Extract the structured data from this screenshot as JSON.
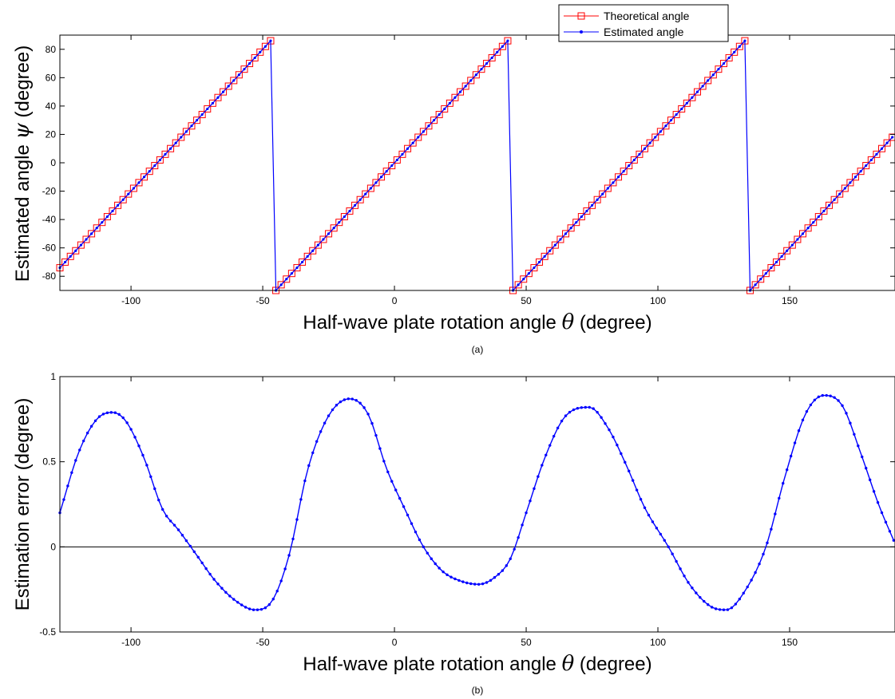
{
  "chart_data": [
    {
      "type": "line",
      "panel_caption": "(a)",
      "xlabel": "Half-wave plate rotation angle θ (degree)",
      "xlabel_text": "Half-wave plate rotation angle",
      "xlabel_symbol": "θ",
      "xlabel_unit": "(degree)",
      "ylabel": "Estimated angle ψ (degree)",
      "ylabel_text": "Estimated angle",
      "ylabel_symbol": "ψ",
      "ylabel_unit": "(degree)",
      "xlim": [
        -127,
        190
      ],
      "ylim": [
        -90,
        90
      ],
      "xticks": [
        -100,
        -50,
        0,
        50,
        100,
        150
      ],
      "yticks": [
        -80,
        -60,
        -40,
        -20,
        0,
        20,
        40,
        60,
        80
      ],
      "grid": false,
      "legend_position": "top-right",
      "x_range": [
        -127,
        190
      ],
      "x_step": 2,
      "relation": "y = 2x wrapped into [-90, 90)",
      "series": [
        {
          "name": "Theoretical angle",
          "color": "#ff0000",
          "marker": "square-open"
        },
        {
          "name": "Estimated angle",
          "color": "#0000ff",
          "marker": "dot"
        }
      ]
    },
    {
      "type": "line",
      "panel_caption": "(b)",
      "xlabel": "Half-wave plate rotation angle θ (degree)",
      "xlabel_text": "Half-wave plate rotation angle",
      "xlabel_symbol": "θ",
      "xlabel_unit": "(degree)",
      "ylabel": "Estimation error (degree)",
      "xlim": [
        -127,
        190
      ],
      "ylim": [
        -0.5,
        1
      ],
      "xticks": [
        -100,
        -50,
        0,
        50,
        100,
        150
      ],
      "yticks": [
        -0.5,
        0,
        0.5,
        1
      ],
      "ytick_labels": [
        "-0.5",
        "0",
        "0.5",
        "1"
      ],
      "grid": false,
      "zero_line": true,
      "x_step": 1.5,
      "series": [
        {
          "color": "#0000ff",
          "marker": "dot",
          "points": [
            [
              -127,
              0.2
            ],
            [
              -120,
              0.55
            ],
            [
              -113,
              0.75
            ],
            [
              -107,
              0.79
            ],
            [
              -102,
              0.74
            ],
            [
              -95,
              0.52
            ],
            [
              -88,
              0.22
            ],
            [
              -82,
              0.1
            ],
            [
              -75,
              -0.05
            ],
            [
              -68,
              -0.2
            ],
            [
              -60,
              -0.32
            ],
            [
              -53,
              -0.37
            ],
            [
              -47,
              -0.33
            ],
            [
              -40,
              -0.05
            ],
            [
              -33,
              0.45
            ],
            [
              -25,
              0.77
            ],
            [
              -17,
              0.87
            ],
            [
              -10,
              0.78
            ],
            [
              -3,
              0.46
            ],
            [
              4,
              0.22
            ],
            [
              11,
              0.0
            ],
            [
              18,
              -0.14
            ],
            [
              25,
              -0.2
            ],
            [
              32,
              -0.22
            ],
            [
              38,
              -0.18
            ],
            [
              44,
              -0.07
            ],
            [
              50,
              0.2
            ],
            [
              57,
              0.52
            ],
            [
              65,
              0.77
            ],
            [
              74,
              0.82
            ],
            [
              81,
              0.7
            ],
            [
              88,
              0.48
            ],
            [
              95,
              0.23
            ],
            [
              104,
              0.0
            ],
            [
              112,
              -0.22
            ],
            [
              120,
              -0.35
            ],
            [
              126,
              -0.37
            ],
            [
              133,
              -0.26
            ],
            [
              141,
              0.0
            ],
            [
              148,
              0.4
            ],
            [
              156,
              0.78
            ],
            [
              163,
              0.89
            ],
            [
              170,
              0.83
            ],
            [
              177,
              0.55
            ],
            [
              184,
              0.24
            ],
            [
              190,
              0.02
            ]
          ]
        }
      ]
    }
  ]
}
